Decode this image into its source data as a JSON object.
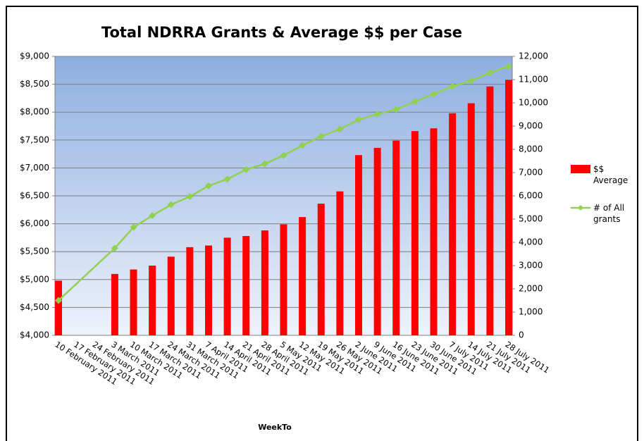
{
  "chart_data": {
    "type": "bar_line",
    "title": "Total NDRRA Grants & Average $$ per Case",
    "x_label": "WeekTo",
    "categories": [
      "10 February 2011",
      "17 February 2011",
      "24 February 2011",
      "3 March 2011",
      "10 March 2011",
      "17 March 2011",
      "24 March 2011",
      "31 March 2011",
      "7 April 2011",
      "14 April 2011",
      "21 April 2011",
      "28 April 2011",
      "5 May 2011",
      "12 May 2011",
      "19 May 2011",
      "26 May 2011",
      "2 June 2011",
      "9 June 2011",
      "16 June 2011",
      "23 June 2011",
      "30 June 2011",
      "7 July 2011",
      "14 July 2011",
      "21 July 2011",
      "28 July 2011"
    ],
    "series": [
      {
        "name": "$$ Average",
        "type": "bar",
        "color": "#ff0000",
        "values": [
          4980,
          null,
          null,
          5100,
          5180,
          5250,
          5410,
          5580,
          5610,
          5750,
          5780,
          5880,
          5990,
          6120,
          6360,
          6580,
          7230,
          7360,
          7490,
          7660,
          7710,
          7980,
          8160,
          8460,
          8580
        ]
      },
      {
        "name": "# of All grants",
        "type": "line",
        "color": "#92d050",
        "axis": "y2",
        "span_gaps": true,
        "values": [
          1500,
          null,
          null,
          3750,
          4650,
          5150,
          5620,
          5970,
          6430,
          6720,
          7130,
          7380,
          7740,
          8170,
          8560,
          8870,
          9280,
          9520,
          9720,
          10060,
          10380,
          10710,
          10950,
          11300,
          11570
        ]
      }
    ],
    "ylim": [
      4000,
      9000
    ],
    "yticks": [
      {
        "value": 4000,
        "label": "$4,000"
      },
      {
        "value": 4500,
        "label": "$4,500"
      },
      {
        "value": 5000,
        "label": "$5,000"
      },
      {
        "value": 5500,
        "label": "$5,500"
      },
      {
        "value": 6000,
        "label": "$6,000"
      },
      {
        "value": 6500,
        "label": "$6,500"
      },
      {
        "value": 7000,
        "label": "$7,000"
      },
      {
        "value": 7500,
        "label": "$7,500"
      },
      {
        "value": 8000,
        "label": "$8,000"
      },
      {
        "value": 8500,
        "label": "$8,500"
      },
      {
        "value": 9000,
        "label": "$9,000"
      }
    ],
    "y2lim": [
      0,
      12000
    ],
    "y2ticks": [
      0,
      {
        "value": 1000,
        "label": "1,000"
      },
      {
        "value": 2000,
        "label": "2,000"
      },
      {
        "value": 3000,
        "label": "3,000"
      },
      {
        "value": 4000,
        "label": "4,000"
      },
      {
        "value": 5000,
        "label": "5,000"
      },
      {
        "value": 6000,
        "label": "6,000"
      },
      {
        "value": 7000,
        "label": "7,000"
      },
      {
        "value": 8000,
        "label": "8,000"
      },
      {
        "value": 9000,
        "label": "9,000"
      },
      {
        "value": 10000,
        "label": "10,000"
      },
      {
        "value": 11000,
        "label": "11,000"
      },
      {
        "value": 12000,
        "label": "12,000"
      }
    ],
    "grid": true,
    "legend": "right"
  }
}
